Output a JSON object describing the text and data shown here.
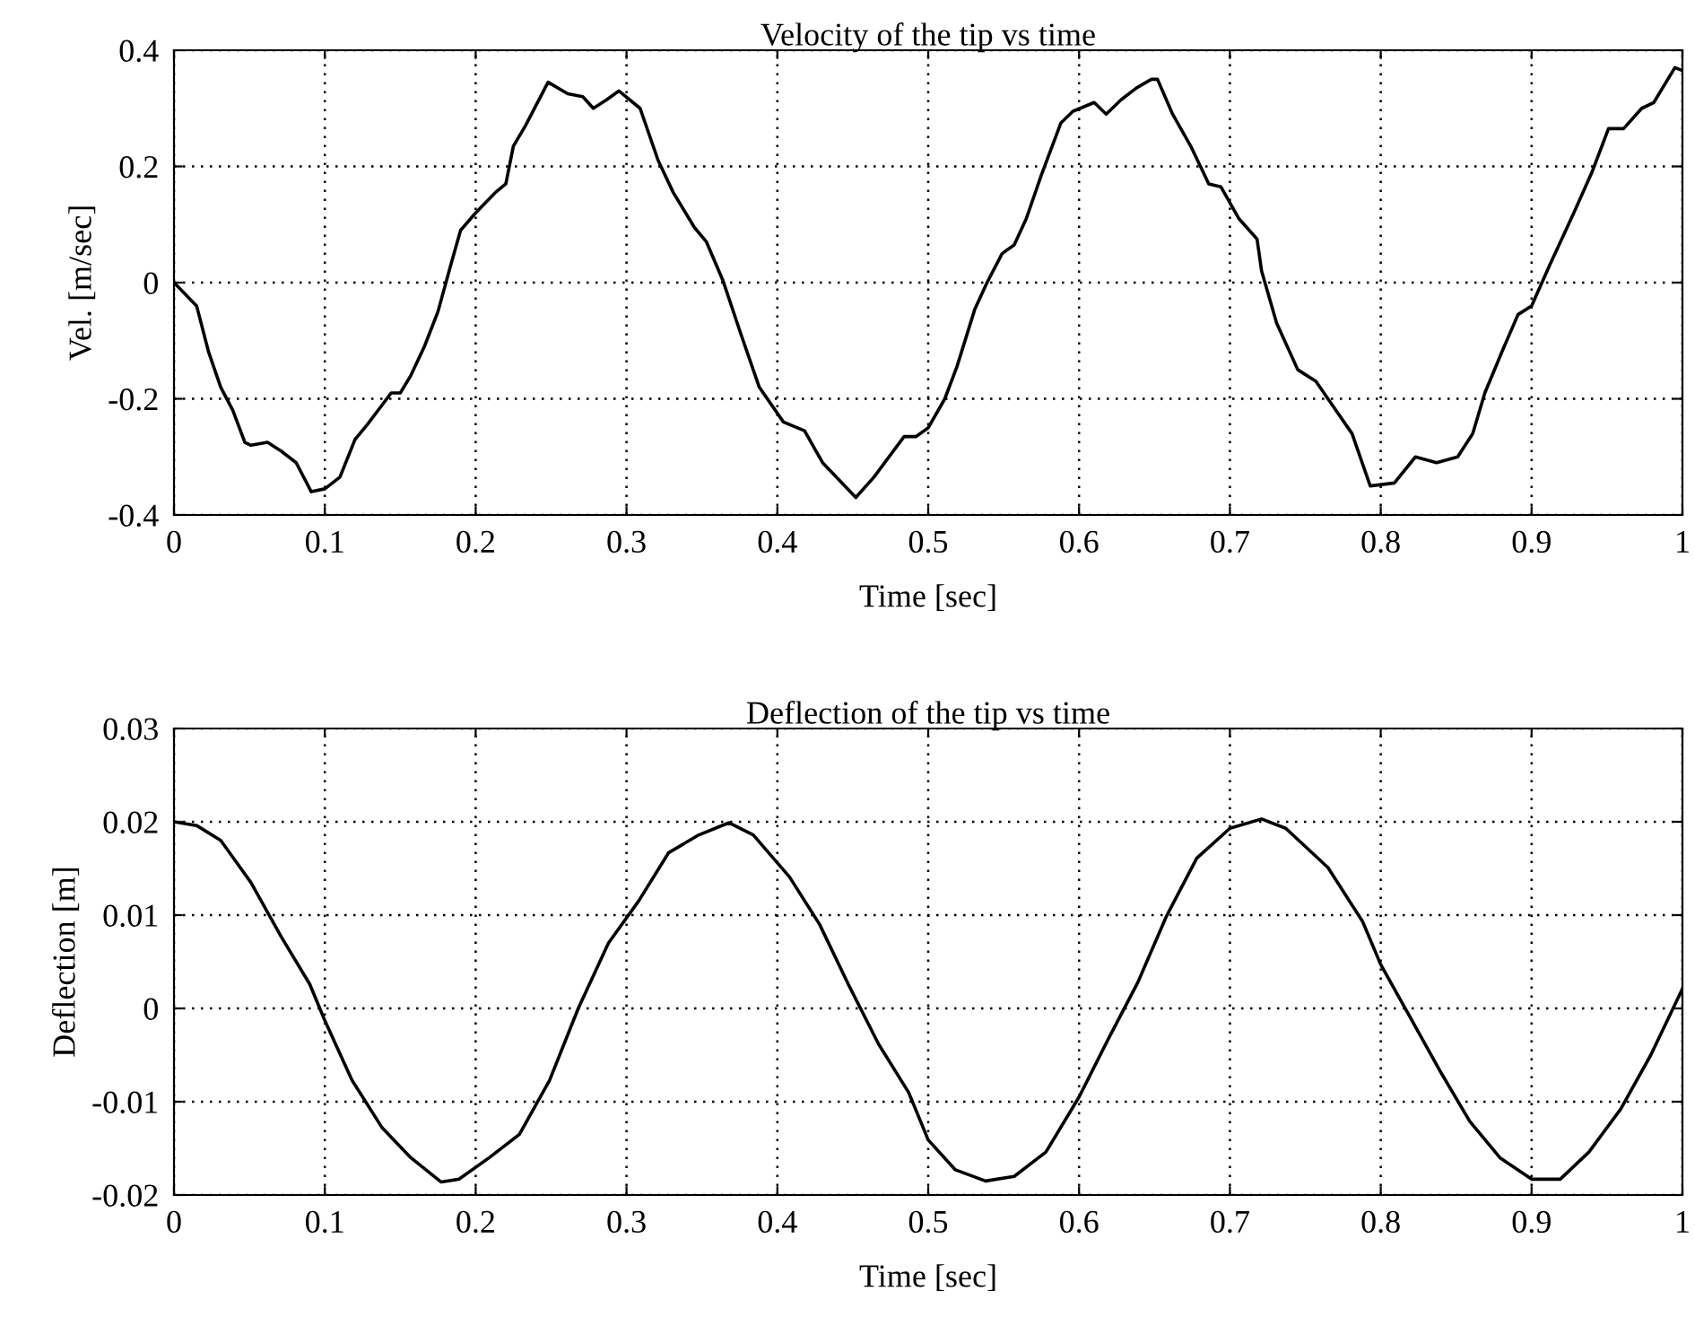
{
  "chart_data": [
    {
      "type": "line",
      "title": "Velocity of the tip vs time",
      "xlabel": "Time [sec]",
      "ylabel": "Vel. [m/sec]",
      "x": [
        0,
        0.015,
        0.023,
        0.031,
        0.039,
        0.047,
        0.051,
        0.062,
        0.071,
        0.081,
        0.091,
        0.1,
        0.11,
        0.12,
        0.128,
        0.144,
        0.15,
        0.157,
        0.166,
        0.175,
        0.184,
        0.19,
        0.2,
        0.213,
        0.22,
        0.225,
        0.233,
        0.248,
        0.261,
        0.271,
        0.278,
        0.287,
        0.295,
        0.309,
        0.321,
        0.331,
        0.345,
        0.353,
        0.364,
        0.376,
        0.388,
        0.404,
        0.418,
        0.43,
        0.452,
        0.464,
        0.484,
        0.492,
        0.5,
        0.511,
        0.519,
        0.531,
        0.539,
        0.549,
        0.557,
        0.565,
        0.575,
        0.588,
        0.596,
        0.61,
        0.618,
        0.628,
        0.638,
        0.648,
        0.652,
        0.662,
        0.674,
        0.686,
        0.694,
        0.706,
        0.718,
        0.721,
        0.731,
        0.745,
        0.757,
        0.765,
        0.781,
        0.793,
        0.809,
        0.823,
        0.837,
        0.851,
        0.861,
        0.869,
        0.881,
        0.891,
        0.9,
        0.912,
        0.928,
        0.94,
        0.951,
        0.961,
        0.973,
        0.981,
        0.995,
        1.0
      ],
      "series": [
        {
          "color": "#000000",
          "values": [
            0,
            -0.04,
            -0.12,
            -0.18,
            -0.22,
            -0.275,
            -0.28,
            -0.275,
            -0.29,
            -0.31,
            -0.36,
            -0.355,
            -0.335,
            -0.27,
            -0.245,
            -0.19,
            -0.19,
            -0.16,
            -0.11,
            -0.05,
            0.035,
            0.09,
            0.12,
            0.155,
            0.17,
            0.235,
            0.27,
            0.345,
            0.325,
            0.32,
            0.3,
            0.315,
            0.33,
            0.3,
            0.21,
            0.155,
            0.095,
            0.07,
            0.003,
            -0.09,
            -0.18,
            -0.24,
            -0.255,
            -0.31,
            -0.37,
            -0.335,
            -0.265,
            -0.265,
            -0.25,
            -0.2,
            -0.145,
            -0.045,
            0,
            0.05,
            0.065,
            0.11,
            0.185,
            0.275,
            0.295,
            0.31,
            0.29,
            0.315,
            0.335,
            0.35,
            0.35,
            0.29,
            0.235,
            0.17,
            0.165,
            0.11,
            0.075,
            0.02,
            -0.07,
            -0.15,
            -0.17,
            -0.2,
            -0.26,
            -0.35,
            -0.345,
            -0.3,
            -0.31,
            -0.3,
            -0.26,
            -0.19,
            -0.115,
            -0.055,
            -0.04,
            0.03,
            0.12,
            0.19,
            0.265,
            0.265,
            0.3,
            0.31,
            0.37,
            0.365
          ]
        }
      ],
      "xlim": [
        0,
        1
      ],
      "xticks": [
        0,
        0.1,
        0.2,
        0.3,
        0.4,
        0.5,
        0.6,
        0.7,
        0.8,
        0.9,
        1
      ],
      "ylim": [
        -0.4,
        0.4
      ],
      "yticks": [
        -0.4,
        -0.2,
        0,
        0.2,
        0.4
      ],
      "grid": true,
      "line_style": "solid"
    },
    {
      "type": "line",
      "title": "Deflection of the tip vs time",
      "xlabel": "Time [sec]",
      "ylabel": "Deflection [m]",
      "x": [
        0,
        0.015,
        0.031,
        0.051,
        0.071,
        0.09,
        0.1,
        0.118,
        0.138,
        0.157,
        0.177,
        0.189,
        0.209,
        0.229,
        0.249,
        0.268,
        0.288,
        0.308,
        0.328,
        0.348,
        0.368,
        0.384,
        0.408,
        0.428,
        0.447,
        0.467,
        0.487,
        0.5,
        0.518,
        0.538,
        0.557,
        0.578,
        0.6,
        0.619,
        0.639,
        0.658,
        0.678,
        0.7,
        0.721,
        0.737,
        0.765,
        0.788,
        0.8,
        0.82,
        0.84,
        0.859,
        0.879,
        0.9,
        0.919,
        0.938,
        0.959,
        0.979,
        1.0
      ],
      "series": [
        {
          "color": "#000000",
          "values": [
            0.02,
            0.0196,
            0.018,
            0.0135,
            0.0077,
            0.0026,
            -0.0013,
            -0.0077,
            -0.0128,
            -0.016,
            -0.0186,
            -0.0183,
            -0.016,
            -0.0135,
            -0.0077,
            0,
            0.007,
            0.0115,
            0.0167,
            0.0186,
            0.0199,
            0.0186,
            0.0141,
            0.009,
            0.0026,
            -0.0038,
            -0.009,
            -0.0141,
            -0.0173,
            -0.0185,
            -0.018,
            -0.0154,
            -0.0095,
            -0.0034,
            0.0028,
            0.0099,
            0.0161,
            0.0193,
            0.0203,
            0.0193,
            0.0151,
            0.0093,
            0.0047,
            -0.0011,
            -0.0069,
            -0.0121,
            -0.016,
            -0.0183,
            -0.0183,
            -0.0154,
            -0.0108,
            -0.005,
            0.0021
          ]
        }
      ],
      "xlim": [
        0,
        1
      ],
      "xticks": [
        0,
        0.1,
        0.2,
        0.3,
        0.4,
        0.5,
        0.6,
        0.7,
        0.8,
        0.9,
        1
      ],
      "ylim": [
        -0.02,
        0.03
      ],
      "yticks": [
        -0.02,
        -0.01,
        0,
        0.01,
        0.02,
        0.03
      ],
      "grid": true,
      "line_style": "solid"
    }
  ]
}
